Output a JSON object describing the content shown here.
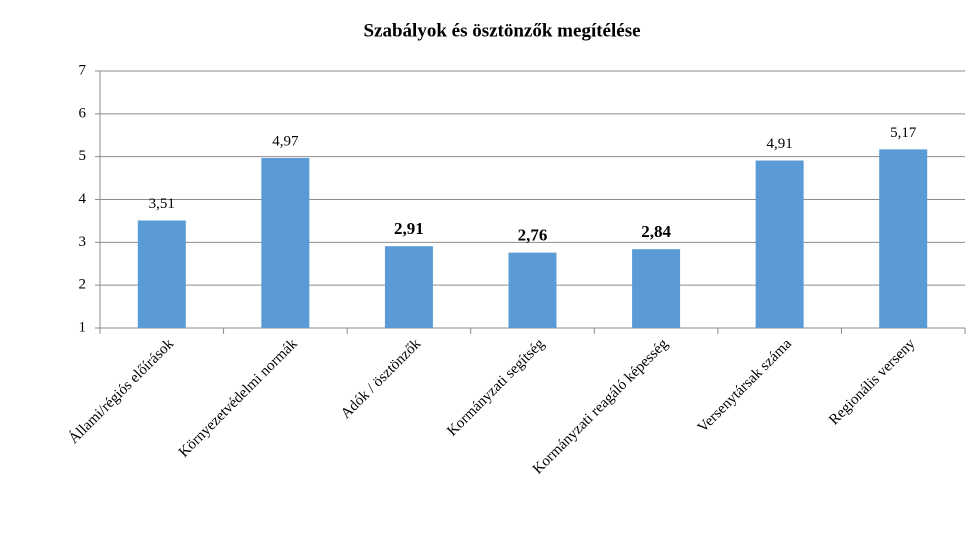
{
  "chart_data": {
    "type": "bar",
    "title": "Szabályok és ösztönzők megítélése",
    "categories": [
      "Állami/régiós előírások",
      "Környezetvédelmi normák",
      "Adók / ösztönzők",
      "Kormányzati segítség",
      "Kormányzati reagáló képesség",
      "Versenytársak száma",
      "Regionális verseny"
    ],
    "values": [
      3.51,
      4.97,
      2.91,
      2.76,
      2.84,
      4.91,
      5.17
    ],
    "value_labels": [
      "3,51",
      "4,97",
      "2,91",
      "2,76",
      "2,84",
      "4,91",
      "5,17"
    ],
    "value_label_bold": [
      false,
      false,
      true,
      true,
      true,
      false,
      false
    ],
    "color": "#5b9bd5",
    "ylim": [
      1,
      7
    ],
    "yticks": [
      1,
      2,
      3,
      4,
      5,
      6,
      7
    ],
    "grid": true
  }
}
